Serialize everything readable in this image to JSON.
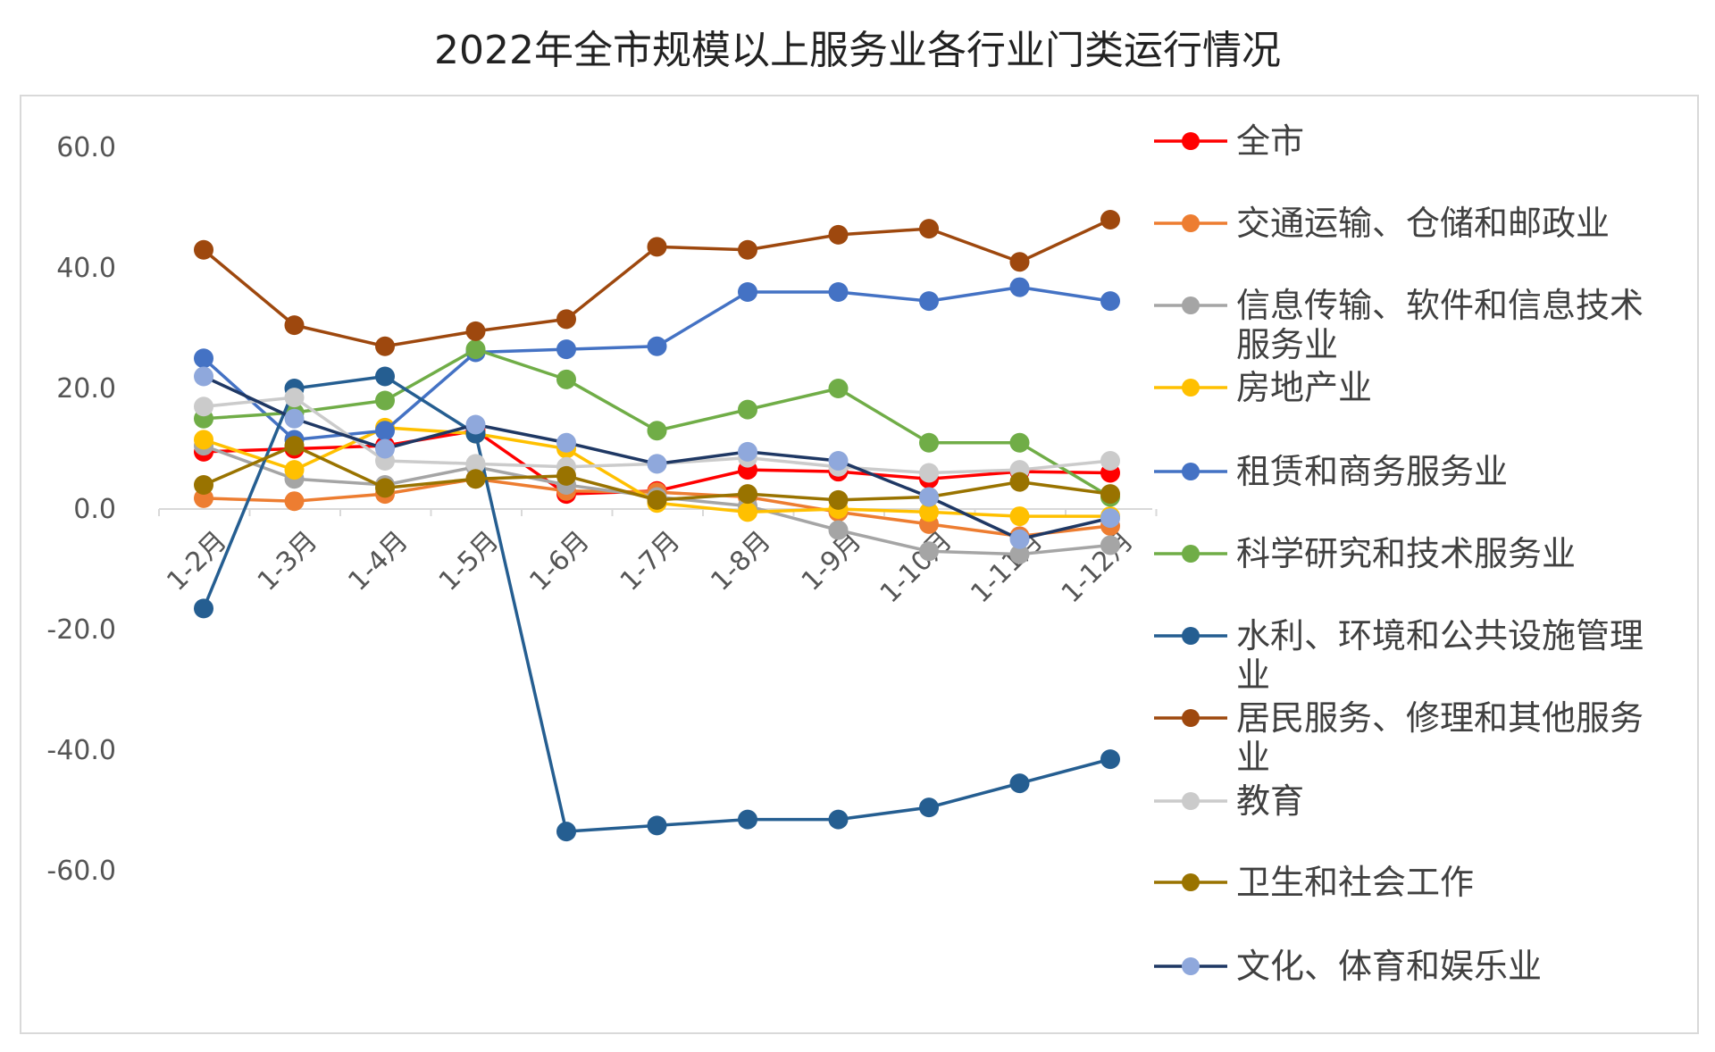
{
  "chart_data": {
    "type": "line",
    "title": "2022年全市规模以上服务业各行业门类运行情况",
    "xlabel": "",
    "ylabel": "",
    "categories": [
      "1-2月",
      "1-3月",
      "1-4月",
      "1-5月",
      "1-6月",
      "1-7月",
      "1-8月",
      "1-9月",
      "1-10月",
      "1-11月",
      "1-12月"
    ],
    "ylim": [
      -60,
      60
    ],
    "yticks": [
      "60.0",
      "40.0",
      "20.0",
      "0.0",
      "-20.0",
      "-40.0",
      "-60.0"
    ],
    "grid": false,
    "legend": "right",
    "series": [
      {
        "name": "全市",
        "color": "#ff0000",
        "values": [
          9.5,
          10.0,
          10.5,
          13.0,
          2.5,
          3.0,
          6.5,
          6.2,
          5.0,
          6.2,
          6.0
        ]
      },
      {
        "name": "交通运输、仓储和邮政业",
        "color": "#ed7d31",
        "values": [
          1.8,
          1.3,
          2.5,
          5.0,
          3.0,
          2.8,
          2.0,
          -0.5,
          -2.5,
          -4.5,
          -2.8
        ]
      },
      {
        "name": "信息传输、软件和信息技术服务业",
        "color": "#a5a5a5",
        "values": [
          10.5,
          5.0,
          4.0,
          7.0,
          4.0,
          2.0,
          0.5,
          -3.5,
          -7.0,
          -7.5,
          -6.0
        ]
      },
      {
        "name": "房地产业",
        "color": "#ffc000",
        "values": [
          11.5,
          6.5,
          13.5,
          12.5,
          10.0,
          1.0,
          -0.5,
          0.0,
          -0.5,
          -1.2,
          -1.2
        ]
      },
      {
        "name": "租赁和商务服务业",
        "color": "#4472c4",
        "values": [
          25.0,
          11.5,
          13.0,
          26.0,
          26.5,
          27.0,
          36.0,
          36.0,
          34.5,
          36.8,
          34.5
        ]
      },
      {
        "name": "科学研究和技术服务业",
        "color": "#70ad47",
        "values": [
          15.0,
          16.0,
          18.0,
          26.5,
          21.5,
          13.0,
          16.5,
          20.0,
          11.0,
          11.0,
          2.0
        ]
      },
      {
        "name": "水利、环境和公共设施管理业",
        "color": "#255e91",
        "values": [
          -16.5,
          20.0,
          22.0,
          12.5,
          -53.5,
          -52.5,
          -51.5,
          -51.5,
          -49.5,
          -45.5,
          -41.5
        ]
      },
      {
        "name": "居民服务、修理和其他服务业",
        "color": "#9e480e",
        "values": [
          43.0,
          30.5,
          27.0,
          29.5,
          31.5,
          43.5,
          43.0,
          45.5,
          46.5,
          41.0,
          48.0
        ]
      },
      {
        "name": "教育",
        "color": "#cbcbcb",
        "values": [
          17.0,
          18.5,
          8.0,
          7.5,
          7.0,
          7.5,
          8.5,
          7.0,
          6.0,
          6.5,
          8.0
        ]
      },
      {
        "name": "卫生和社会工作",
        "color": "#997300",
        "values": [
          4.0,
          10.5,
          3.5,
          5.0,
          5.5,
          1.5,
          2.5,
          1.5,
          2.0,
          4.5,
          2.5
        ]
      },
      {
        "name": "文化、体育和娱乐业",
        "color": "#1f3864",
        "marker_color": "#8fa8dc",
        "values": [
          22.0,
          15.0,
          10.0,
          14.0,
          11.0,
          7.5,
          9.5,
          8.0,
          2.0,
          -5.0,
          -1.5
        ]
      }
    ]
  }
}
